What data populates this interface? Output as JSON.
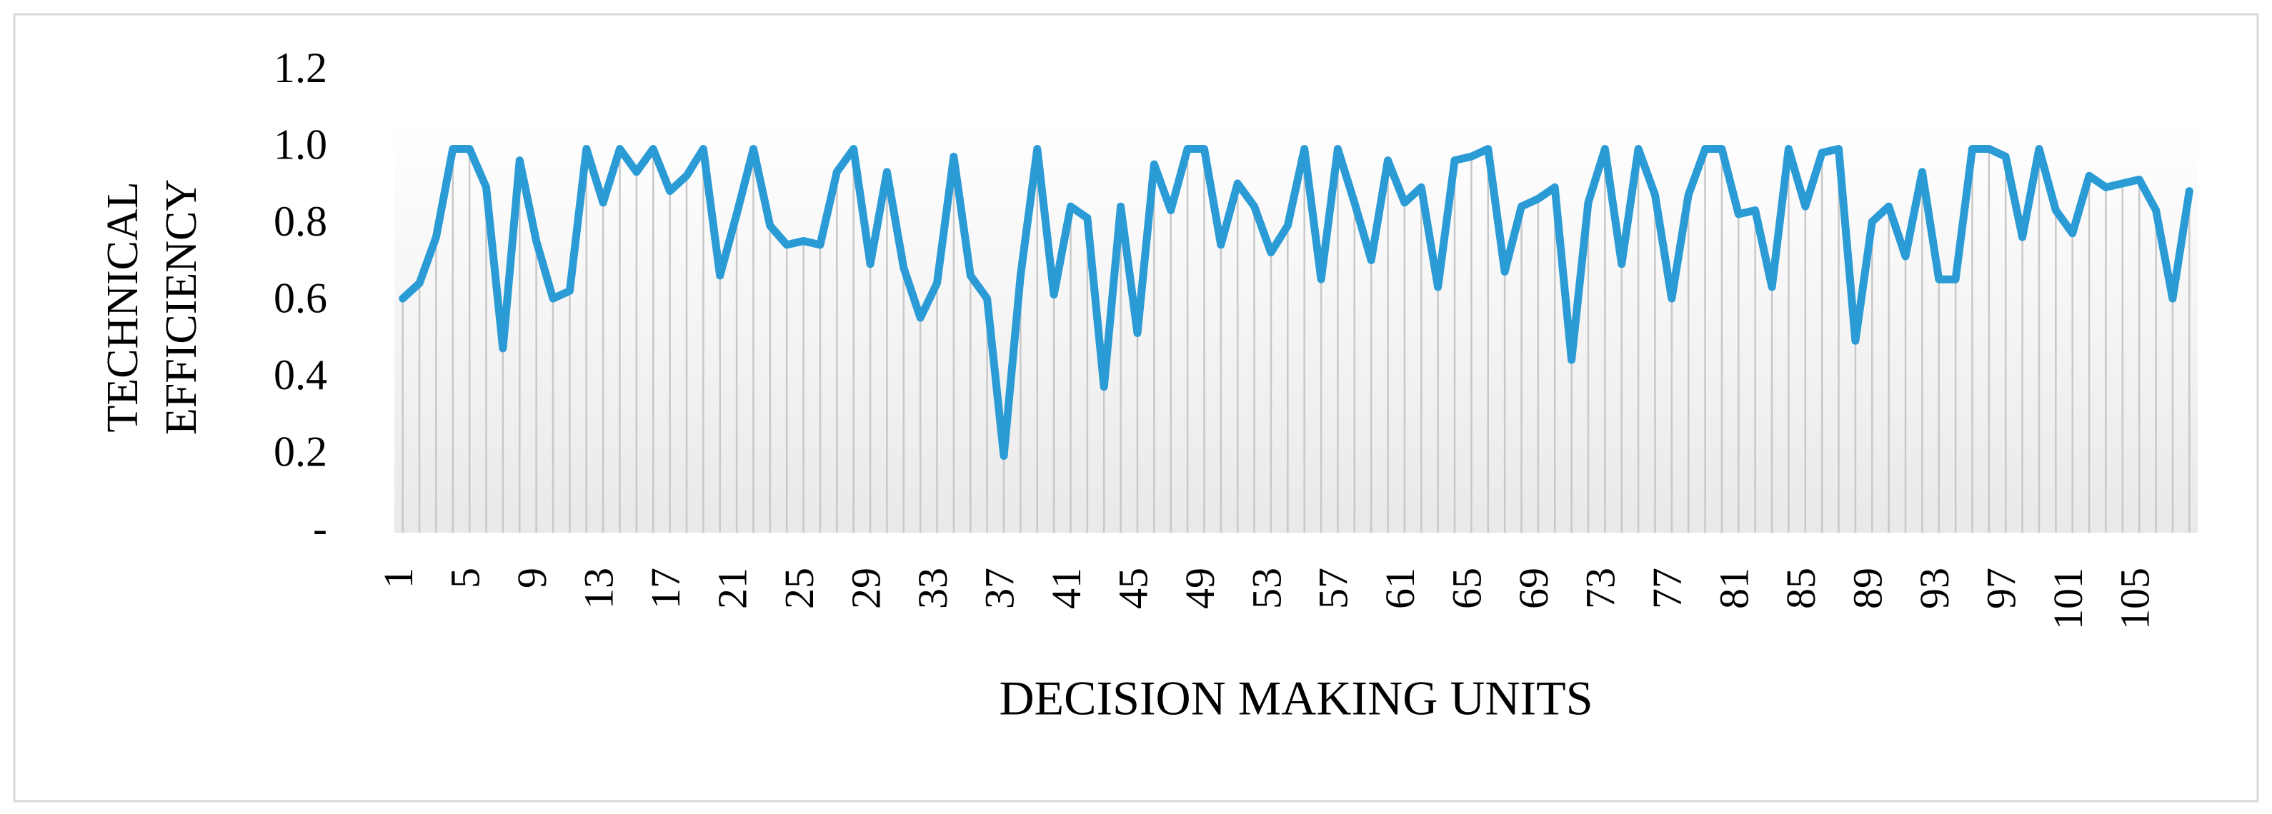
{
  "chart_data": {
    "type": "line",
    "x_label": "DECISION MAKING UNITS",
    "y_label": "TECHNICAL EFFICIENCY",
    "categories": [
      "1",
      null,
      null,
      null,
      "5",
      null,
      null,
      null,
      "9",
      null,
      null,
      null,
      "13",
      null,
      null,
      null,
      "17",
      null,
      null,
      null,
      "21",
      null,
      null,
      null,
      "25",
      null,
      null,
      null,
      "29",
      null,
      null,
      null,
      "33",
      null,
      null,
      null,
      "37",
      null,
      null,
      null,
      "41",
      null,
      null,
      null,
      "45",
      null,
      null,
      null,
      "49",
      null,
      null,
      null,
      "53",
      null,
      null,
      null,
      "57",
      null,
      null,
      null,
      "61",
      null,
      null,
      null,
      "65",
      null,
      null,
      null,
      "69",
      null,
      null,
      null,
      "73",
      null,
      null,
      null,
      "77",
      null,
      null,
      null,
      "81",
      null,
      null,
      null,
      "85",
      null,
      null,
      null,
      "89",
      null,
      null,
      null,
      "93",
      null,
      null,
      null,
      "97",
      null,
      null,
      null,
      "101",
      null,
      null,
      null,
      "105",
      null,
      null,
      null
    ],
    "series": [
      {
        "color": "#2b9bd6",
        "values": [
          0.61,
          0.65,
          0.77,
          1.0,
          1.0,
          0.9,
          0.48,
          0.97,
          0.76,
          0.61,
          0.63,
          1.0,
          0.86,
          1.0,
          0.94,
          1.0,
          0.89,
          0.93,
          1.0,
          0.67,
          0.83,
          1.0,
          0.8,
          0.75,
          0.76,
          0.75,
          0.94,
          1.0,
          0.7,
          0.94,
          0.69,
          0.56,
          0.65,
          0.98,
          0.67,
          0.61,
          0.2,
          0.67,
          1.0,
          0.62,
          0.85,
          0.82,
          0.38,
          0.85,
          0.52,
          0.96,
          0.84,
          1.0,
          1.0,
          0.75,
          0.91,
          0.85,
          0.73,
          0.8,
          1.0,
          0.66,
          1.0,
          0.86,
          0.71,
          0.97,
          0.86,
          0.9,
          0.64,
          0.97,
          0.98,
          1.0,
          0.68,
          0.85,
          0.87,
          0.9,
          0.45,
          0.86,
          1.0,
          0.7,
          1.0,
          0.88,
          0.61,
          0.88,
          1.0,
          1.0,
          0.83,
          0.84,
          0.64,
          1.0,
          0.85,
          0.99,
          1.0,
          0.5,
          0.81,
          0.85,
          0.72,
          0.94,
          0.66,
          0.66,
          1.0,
          1.0,
          0.98,
          0.77,
          1.0,
          0.84,
          0.78,
          0.93,
          0.9,
          0.91,
          0.92,
          0.84,
          0.61,
          0.89
        ]
      }
    ],
    "ylim": [
      0,
      1.2
    ],
    "yticks": [
      {
        "value": 0,
        "label": "-"
      },
      0.2,
      0.4,
      0.6,
      0.8,
      {
        "value": 1,
        "label": "1.0"
      },
      1.2
    ],
    "drop_lines": true
  }
}
